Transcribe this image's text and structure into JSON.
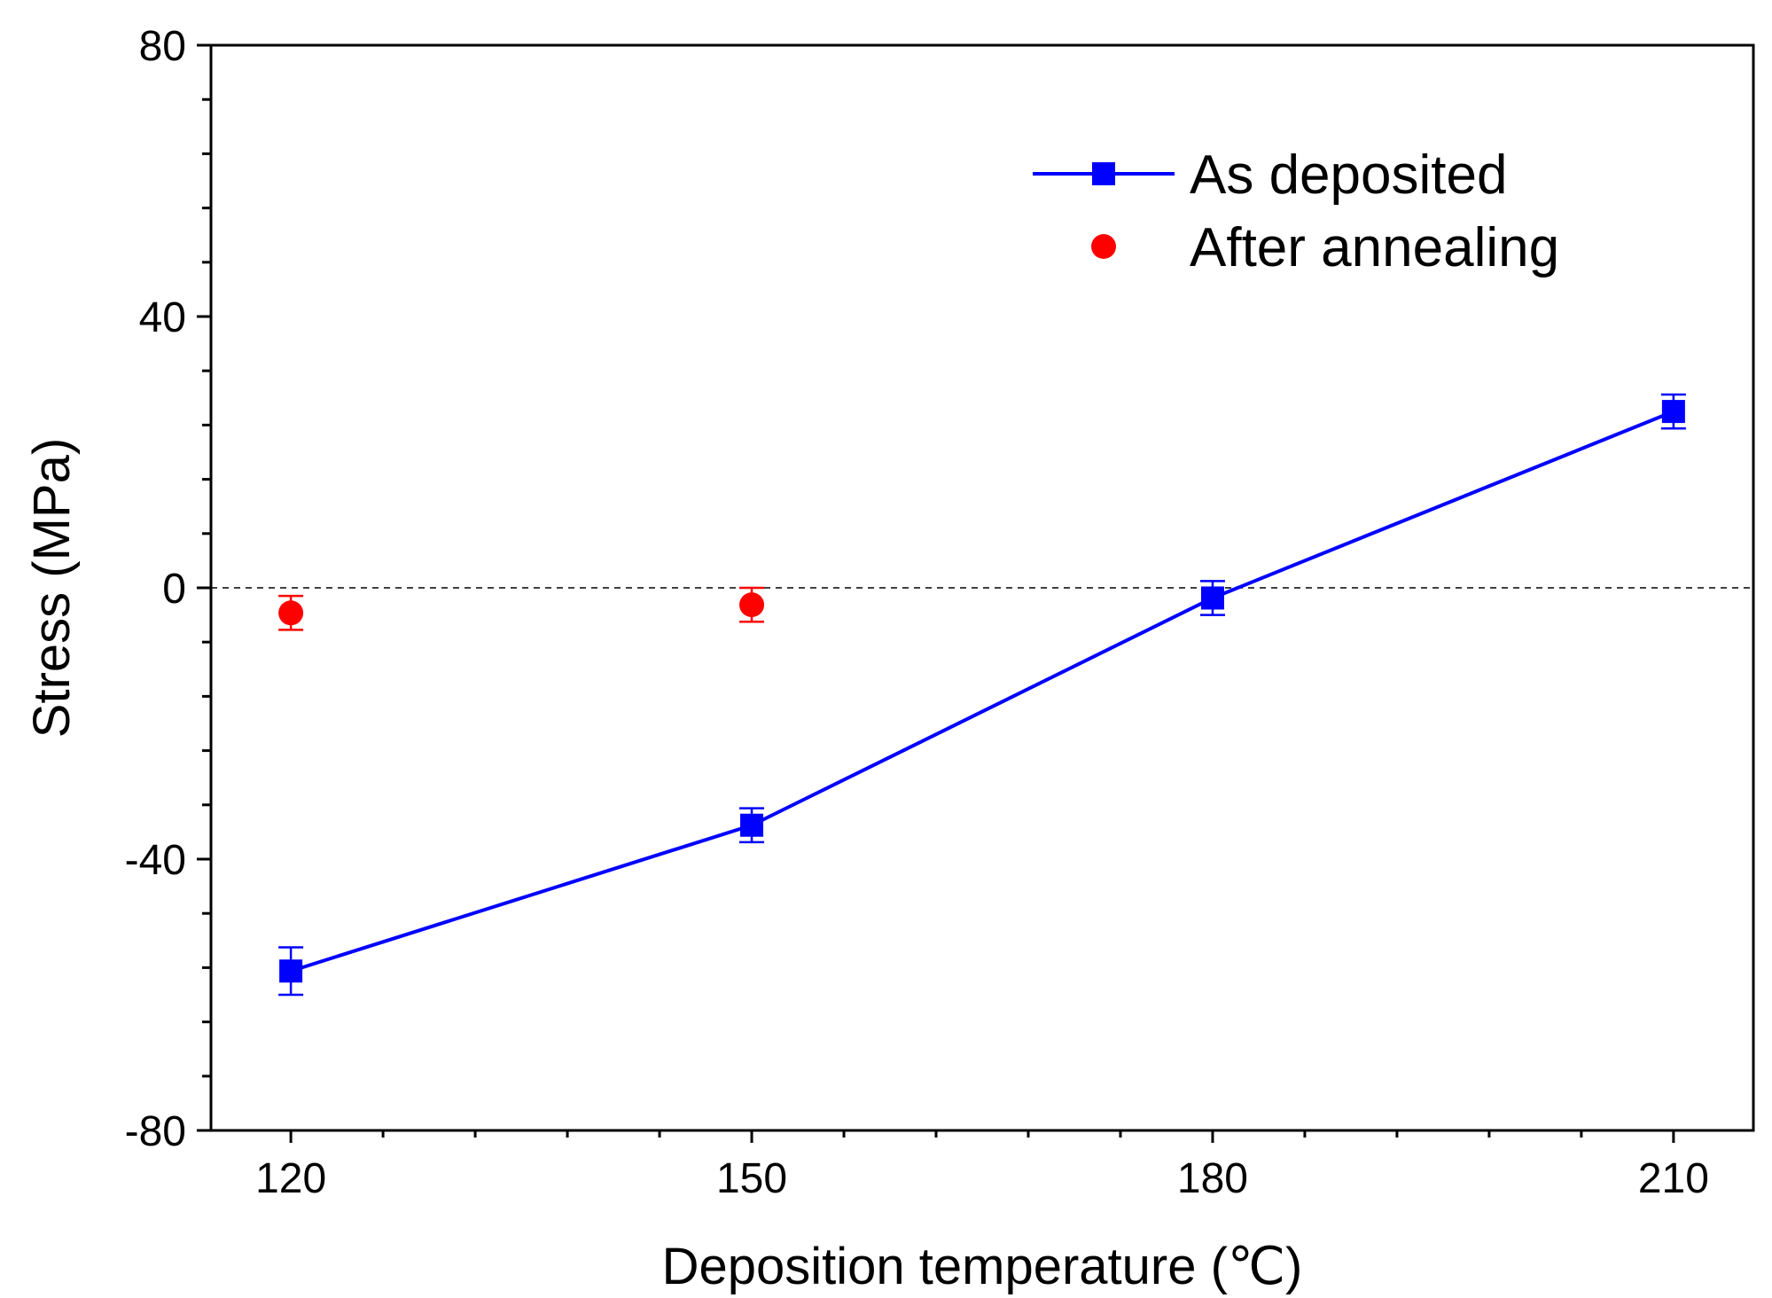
{
  "chart_data": {
    "type": "line",
    "xlabel": "Deposition temperature (℃)",
    "ylabel": "Stress (MPa)",
    "xlim": [
      114.8,
      215.2
    ],
    "ylim": [
      -80,
      80
    ],
    "x_ticks": [
      120,
      150,
      180,
      210
    ],
    "y_ticks": [
      -80,
      -40,
      0,
      40,
      80
    ],
    "x_minor_step": 6,
    "y_minor_step": 8,
    "reference_line": {
      "y": 0,
      "style": "dashed"
    },
    "legend_position": "top-right",
    "series": [
      {
        "name": "As deposited",
        "color": "#0000ff",
        "marker": "square",
        "line": true,
        "x": [
          120,
          150,
          180,
          210
        ],
        "y": [
          -56.5,
          -35,
          -1.5,
          26
        ],
        "err": [
          3.5,
          2.5,
          2.5,
          2.5
        ]
      },
      {
        "name": "After annealing",
        "color": "#ff0000",
        "marker": "circle",
        "line": false,
        "x": [
          120,
          150
        ],
        "y": [
          -3.7,
          -2.5
        ],
        "err": [
          2.5,
          2.5
        ]
      }
    ]
  }
}
